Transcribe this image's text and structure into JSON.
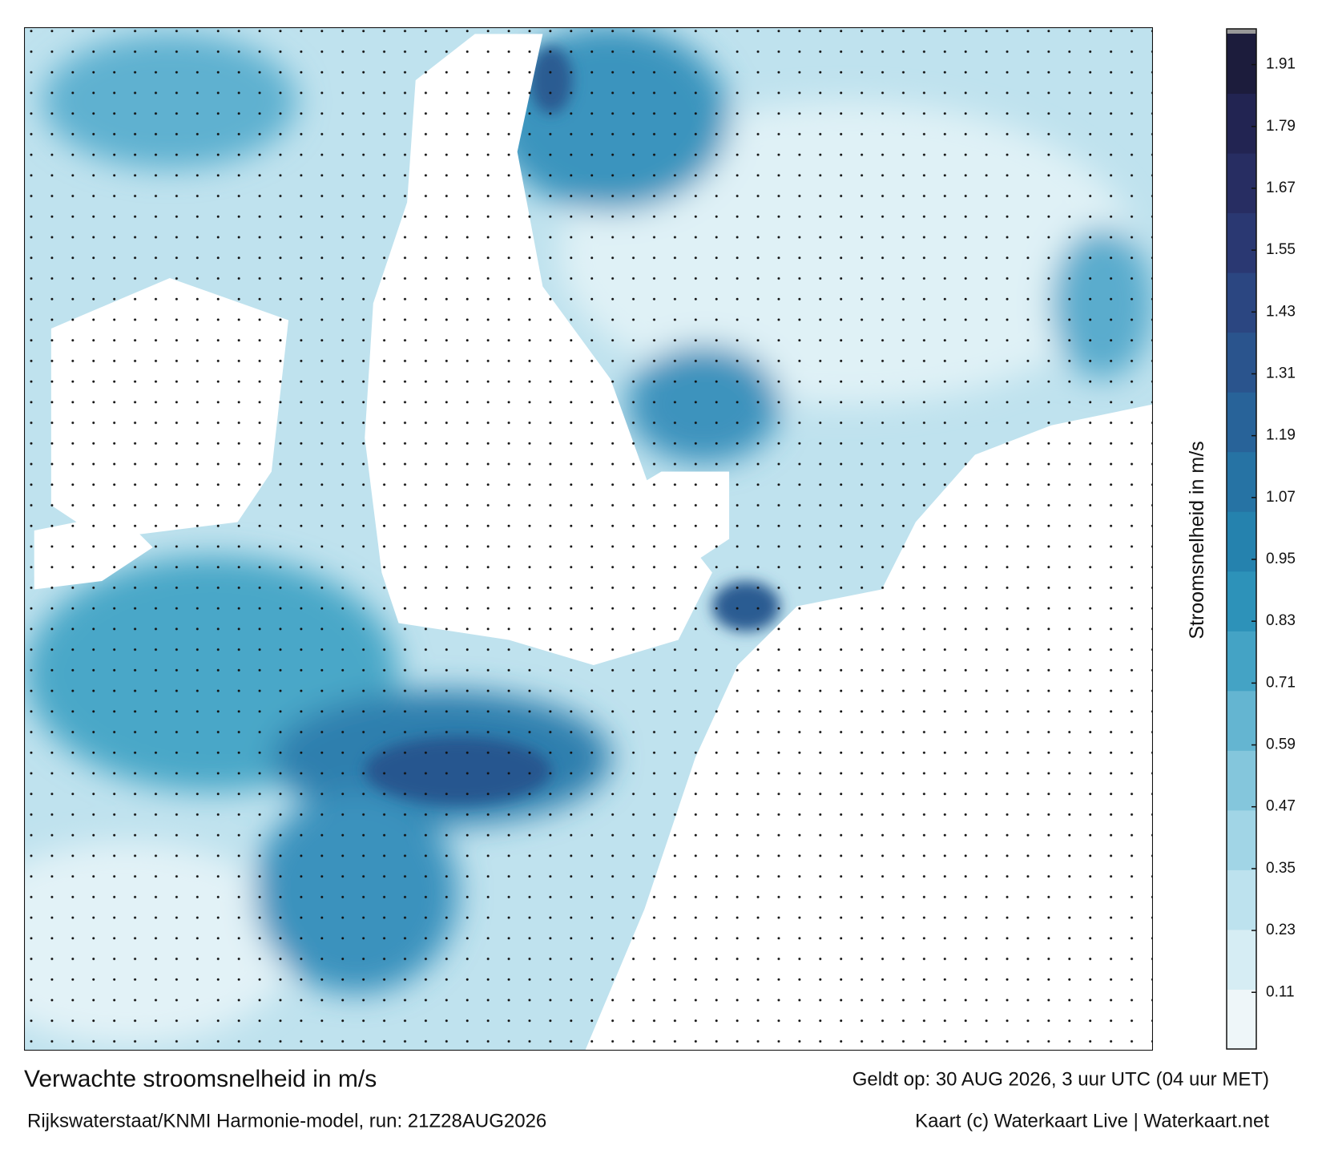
{
  "header": {
    "title": "Verwachte stroomsnelheid in m/s",
    "subtitle": "Rijkswaterstaat/KNMI Harmonie-model, run: 21Z28AUG2026",
    "valid": "Geldt op: 30 AUG 2026, 3 uur UTC (04 uur MET)",
    "credit": "Kaart (c) Waterkaart Live | Waterkaart.net"
  },
  "colorbar": {
    "label": "Stroomsnelheid in m/s",
    "range": [
      0,
      1.97
    ],
    "ticks": [
      0.11,
      0.23,
      0.35,
      0.47,
      0.59,
      0.71,
      0.83,
      0.95,
      1.07,
      1.19,
      1.31,
      1.43,
      1.55,
      1.67,
      1.79,
      1.91
    ],
    "colors": [
      "#eef6f9",
      "#d6edf4",
      "#bde2ee",
      "#a1d5e6",
      "#84c6dc",
      "#64b5d1",
      "#44a3c5",
      "#2d92b9",
      "#2582ae",
      "#2673a4",
      "#286399",
      "#2a548d",
      "#2b4681",
      "#2a3872",
      "#272d62",
      "#222452",
      "#1c1c3c"
    ]
  }
}
